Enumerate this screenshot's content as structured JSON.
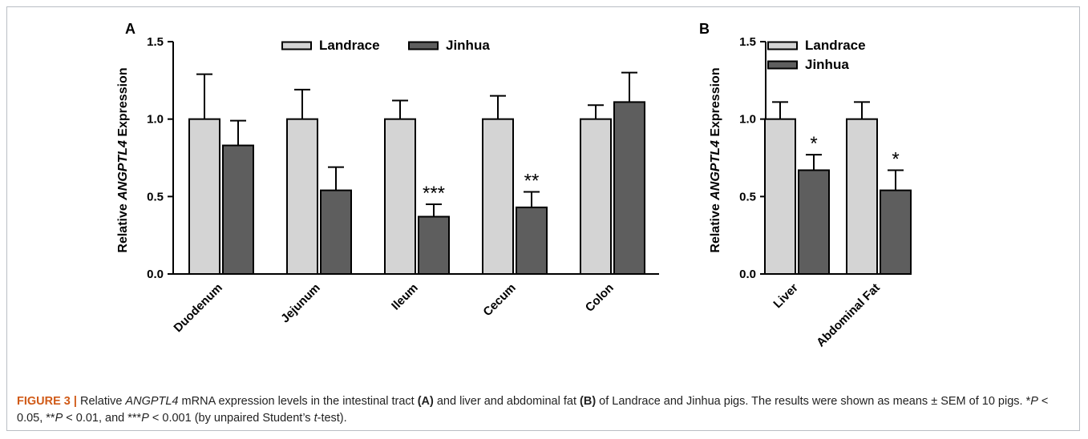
{
  "chart_data": [
    {
      "panel": "A",
      "type": "bar",
      "categories": [
        "Duodenum",
        "Jejunum",
        "Ileum",
        "Cecum",
        "Colon"
      ],
      "series": [
        {
          "name": "Landrace",
          "values": [
            1.0,
            1.0,
            1.0,
            1.0,
            1.0
          ],
          "errors": [
            0.29,
            0.19,
            0.12,
            0.15,
            0.09
          ],
          "color": "#d4d4d4"
        },
        {
          "name": "Jinhua",
          "values": [
            0.83,
            0.54,
            0.37,
            0.43,
            1.11
          ],
          "errors": [
            0.16,
            0.15,
            0.08,
            0.1,
            0.19
          ],
          "color": "#5e5e5e"
        }
      ],
      "significance": [
        "",
        "",
        "***",
        "**",
        ""
      ],
      "ylabel_prefix": "Relative ",
      "ylabel_gene": "ANGPTL4",
      "ylabel_suffix": " Expression",
      "yticks": [
        "0.0",
        "0.5",
        "1.0",
        "1.5"
      ],
      "ylim": [
        0,
        1.5
      ],
      "legend_position": "top-center"
    },
    {
      "panel": "B",
      "type": "bar",
      "categories": [
        "Liver",
        "Abdominal Fat"
      ],
      "series": [
        {
          "name": "Landrace",
          "values": [
            1.0,
            1.0
          ],
          "errors": [
            0.11,
            0.11
          ],
          "color": "#d4d4d4"
        },
        {
          "name": "Jinhua",
          "values": [
            0.67,
            0.54
          ],
          "errors": [
            0.1,
            0.13
          ],
          "color": "#5e5e5e"
        }
      ],
      "significance": [
        "*",
        "*"
      ],
      "ylabel_prefix": "Relative ",
      "ylabel_gene": "ANGPTL4",
      "ylabel_suffix": " Expression",
      "yticks": [
        "0.0",
        "0.5",
        "1.0",
        "1.5"
      ],
      "ylim": [
        0,
        1.5
      ],
      "legend_position": "top-left"
    }
  ],
  "caption": {
    "fig_label": "FIGURE 3 |",
    "t1": " Relative ",
    "gene": "ANGPTL4",
    "t2": " mRNA expression levels in the intestinal tract ",
    "a": "(A)",
    "t3": " and liver and abdominal fat ",
    "b": "(B)",
    "t4": " of Landrace and Jinhua pigs. The results were shown as means ± SEM of 10 pigs. *",
    "p1": "P",
    "t5": " < 0.05, **",
    "p2": "P",
    "t6": " < 0.01, and ***",
    "p3": "P",
    "t7": " < 0.001 (by unpaired Student’s ",
    "t": "t",
    "t8": "-test)."
  }
}
